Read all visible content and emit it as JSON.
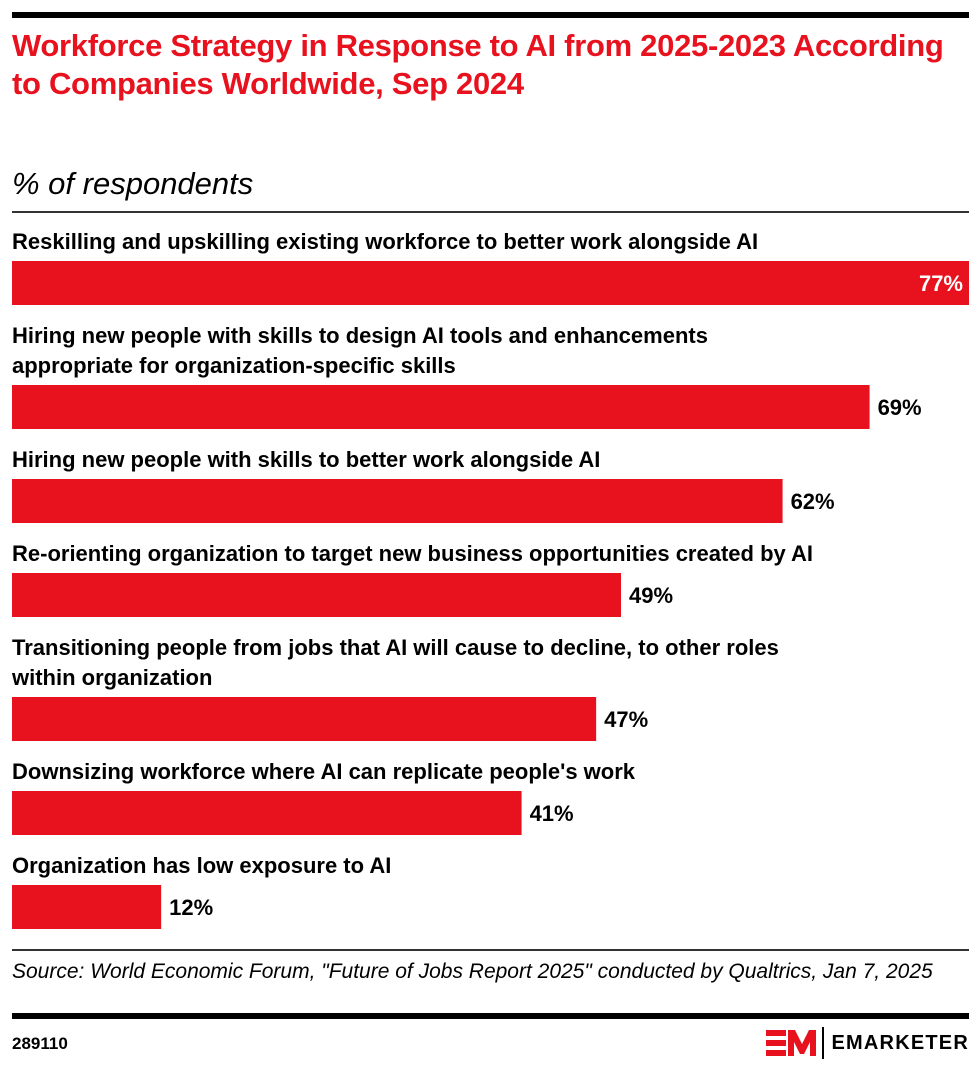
{
  "header": {
    "title": "Workforce Strategy in Response to AI from 2025-2023 According to Companies Worldwide, Sep 2024",
    "subtitle": "% of respondents"
  },
  "chart_data": {
    "type": "bar",
    "orientation": "horizontal",
    "title": "Workforce Strategy in Response to AI from 2025-2023 According to Companies Worldwide, Sep 2024",
    "subtitle": "% of respondents",
    "xlabel": "",
    "ylabel": "",
    "unit": "%",
    "xlim": [
      0,
      77
    ],
    "grid": false,
    "bar_color": "#e8111e",
    "categories": [
      "Reskilling and upskilling existing workforce to better work alongside AI",
      "Hiring new people with skills to design AI tools and enhancements appropriate for organization-specific skills",
      "Hiring new people with skills to better work alongside AI",
      "Re-orienting organization to target new business opportunities created by AI",
      "Transitioning people from jobs that AI will cause to decline, to other roles within organization",
      "Downsizing workforce where AI can replicate people's work",
      "Organization has low exposure to AI"
    ],
    "label_lines": [
      [
        "Reskilling and upskilling existing workforce to better work alongside AI"
      ],
      [
        "Hiring new people with skills to design AI tools and enhancements",
        "appropriate for organization-specific skills"
      ],
      [
        "Hiring new people with skills to better work alongside AI"
      ],
      [
        "Re-orienting organization to target new business opportunities created by AI"
      ],
      [
        "Transitioning people from jobs that AI will cause to decline, to other roles",
        "within organization"
      ],
      [
        "Downsizing workforce where AI can replicate people's work"
      ],
      [
        "Organization has low exposure to AI"
      ]
    ],
    "values": [
      77,
      69,
      62,
      49,
      47,
      41,
      12
    ],
    "value_labels": [
      "77%",
      "69%",
      "62%",
      "49%",
      "47%",
      "41%",
      "12%"
    ]
  },
  "footer": {
    "source": "Source: World Economic Forum, \"Future of Jobs Report 2025\" conducted by Qualtrics, Jan 7, 2025",
    "chart_id": "289110",
    "brand": "EMARKETER",
    "brand_color": "#e8111e"
  }
}
